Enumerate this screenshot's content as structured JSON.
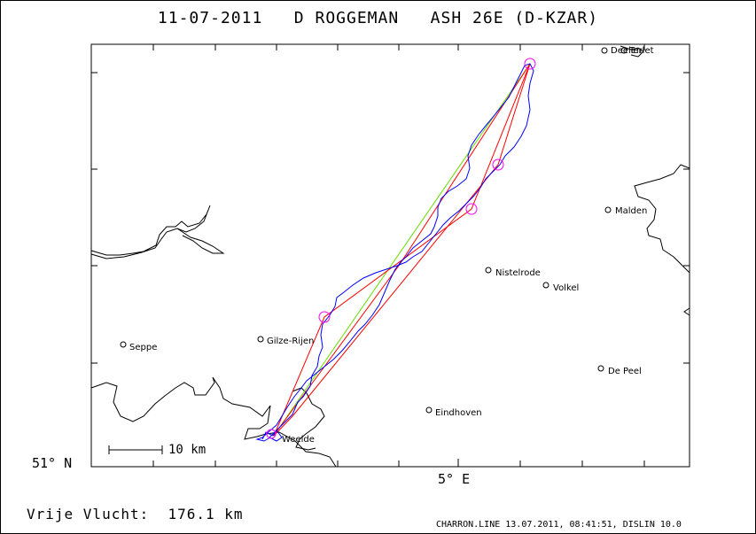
{
  "title": "11-07-2011   D ROGGEMAN   ASH 26E (D-KZAR)",
  "lat_label": "51° N",
  "lon_label": "5° E",
  "scale_label": "10 km",
  "distance_text": "Vrije Vlucht:  176.1 km",
  "footer": "CHARRON.LINE 13.07.2011, 08:41:51, DISLIN 10.0",
  "places": {
    "deelen": "Deelen",
    "terlet": "Terlet",
    "malden": "Malden",
    "nistelrode": "Nistelrode",
    "volkel": "Volkel",
    "seppe": "Seppe",
    "gilze_rijen": "Gilze-Rijen",
    "de_peel": "De Peel",
    "eindhoven": "Eindhoven",
    "weelde": "Weelde"
  },
  "colors": {
    "track": "#0000ff",
    "task_legs": "#ff0000",
    "free_flight": "#00cc00",
    "turnpoints": "#ff00ff",
    "coastline": "#000000"
  }
}
